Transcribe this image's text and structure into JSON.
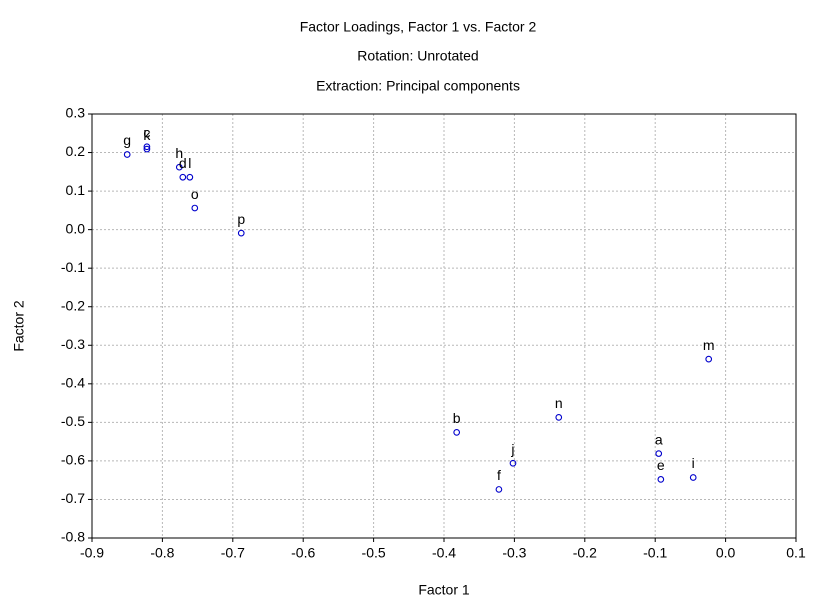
{
  "chart_data": {
    "type": "scatter",
    "title": "Factor Loadings, Factor 1 vs. Factor 2",
    "subtitle": [
      "Rotation: Unrotated",
      "Extraction: Principal components"
    ],
    "x_label": "Factor 1",
    "y_label": "Factor 2",
    "labels": [
      "g",
      "c",
      "k",
      "h",
      "d",
      "l",
      "o",
      "p",
      "b",
      "f",
      "j",
      "n",
      "a",
      "e",
      "i",
      "m"
    ],
    "x": [
      -0.85,
      -0.822,
      -0.822,
      -0.776,
      -0.771,
      -0.761,
      -0.754,
      -0.688,
      -0.382,
      -0.322,
      -0.302,
      -0.237,
      -0.095,
      -0.092,
      -0.046,
      -0.024
    ],
    "values": [
      0.195,
      0.215,
      0.209,
      0.162,
      0.136,
      0.136,
      0.056,
      -0.009,
      -0.526,
      -0.674,
      -0.606,
      -0.487,
      -0.581,
      -0.648,
      -0.643,
      -0.336
    ],
    "color": "#0000cc",
    "xlim": [
      -0.9,
      0.1
    ],
    "xticks": [
      -0.9,
      -0.8,
      -0.7,
      -0.6,
      -0.5,
      -0.4,
      -0.3,
      -0.2,
      -0.1,
      {
        "value": 0,
        "label": "0.0"
      },
      0.1
    ],
    "ylim": [
      -0.8,
      0.3
    ],
    "yticks": [
      -0.8,
      -0.7,
      -0.6,
      -0.5,
      -0.4,
      -0.3,
      -0.2,
      -0.1,
      {
        "value": 0,
        "label": "0.0"
      },
      0.1,
      0.2,
      0.3
    ],
    "grid": true
  }
}
